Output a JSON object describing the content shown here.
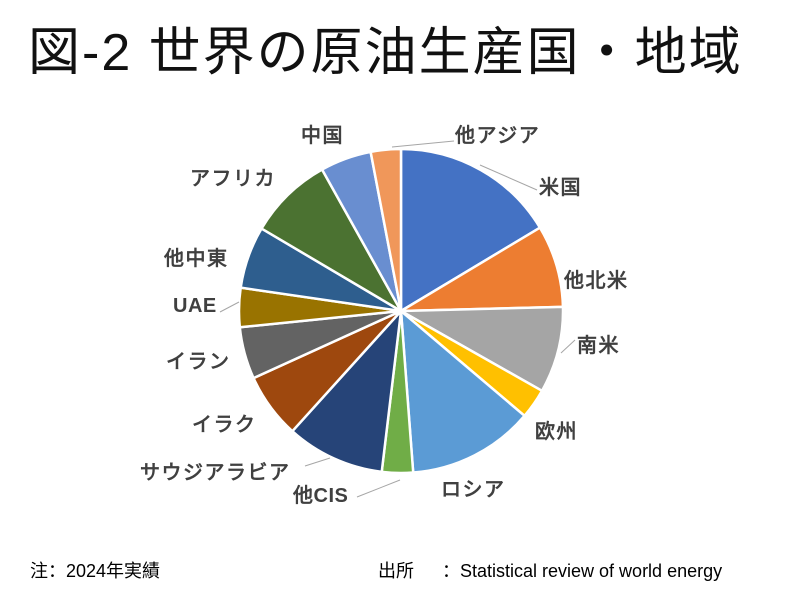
{
  "title": "図-2 世界の原油生産国・地域",
  "note": "注：2024年実績",
  "source": {
    "label": "出所",
    "text": "：Statistical  review of world energy"
  },
  "chart_data": {
    "type": "pie",
    "title": "図-2 世界の原油生産国・地域",
    "legend_position": "none",
    "data_labels": "category names outside slices, some with leader lines",
    "start_angle_deg": 0,
    "direction": "clockwise",
    "value_format": "percent share (estimated from slice angles)",
    "categories": [
      "米国",
      "他北米",
      "南米",
      "欧州",
      "ロシア",
      "他CIS",
      "サウジアラビア",
      "イラク",
      "イラン",
      "UAE",
      "他中東",
      "アフリカ",
      "中国",
      "他アジア"
    ],
    "values": [
      16.4,
      8.2,
      8.6,
      3.0,
      12.6,
      3.1,
      9.8,
      6.5,
      5.2,
      3.9,
      6.2,
      8.4,
      5.1,
      3.0
    ],
    "colors": [
      "#4472C4",
      "#ED7D31",
      "#A5A5A5",
      "#FFC000",
      "#5B9BD5",
      "#70AD47",
      "#264478",
      "#9E480E",
      "#636363",
      "#997300",
      "#2E5E8E",
      "#4B7231",
      "#698ED0",
      "#F0975A"
    ],
    "label_color": "#404040",
    "leader_line_color": "#A6A6A6",
    "background": "#FFFFFF"
  }
}
